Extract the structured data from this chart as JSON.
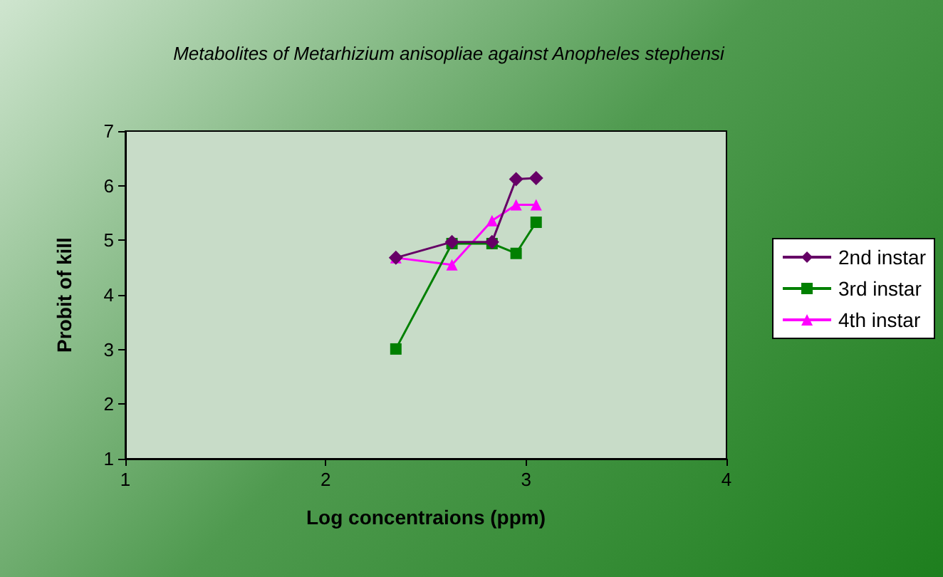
{
  "chart_data": {
    "type": "line",
    "title": "Metabolites of Metarhizium anisopliae against Anopheles stephensi",
    "xlabel": "Log concentraions (ppm)",
    "ylabel": "Probit of kill",
    "x": [
      2.35,
      2.63,
      2.83,
      2.95,
      3.05
    ],
    "series": [
      {
        "name": "2nd instar",
        "color": "#660066",
        "marker": "diamond",
        "values": [
          4.68,
          4.97,
          4.97,
          6.12,
          6.14
        ]
      },
      {
        "name": "3rd instar",
        "color": "#008000",
        "marker": "square",
        "values": [
          3.01,
          4.94,
          4.94,
          4.76,
          5.33
        ]
      },
      {
        "name": "4th instar",
        "color": "#ff00ff",
        "marker": "triangle",
        "values": [
          4.68,
          4.55,
          5.36,
          5.65,
          5.65
        ]
      }
    ],
    "xlim": [
      1,
      4
    ],
    "xticks": [
      1,
      2,
      3,
      4
    ],
    "ylim": [
      1,
      7
    ],
    "yticks": [
      1,
      2,
      3,
      4,
      5,
      6,
      7
    ],
    "grid": false,
    "legend": "right"
  }
}
